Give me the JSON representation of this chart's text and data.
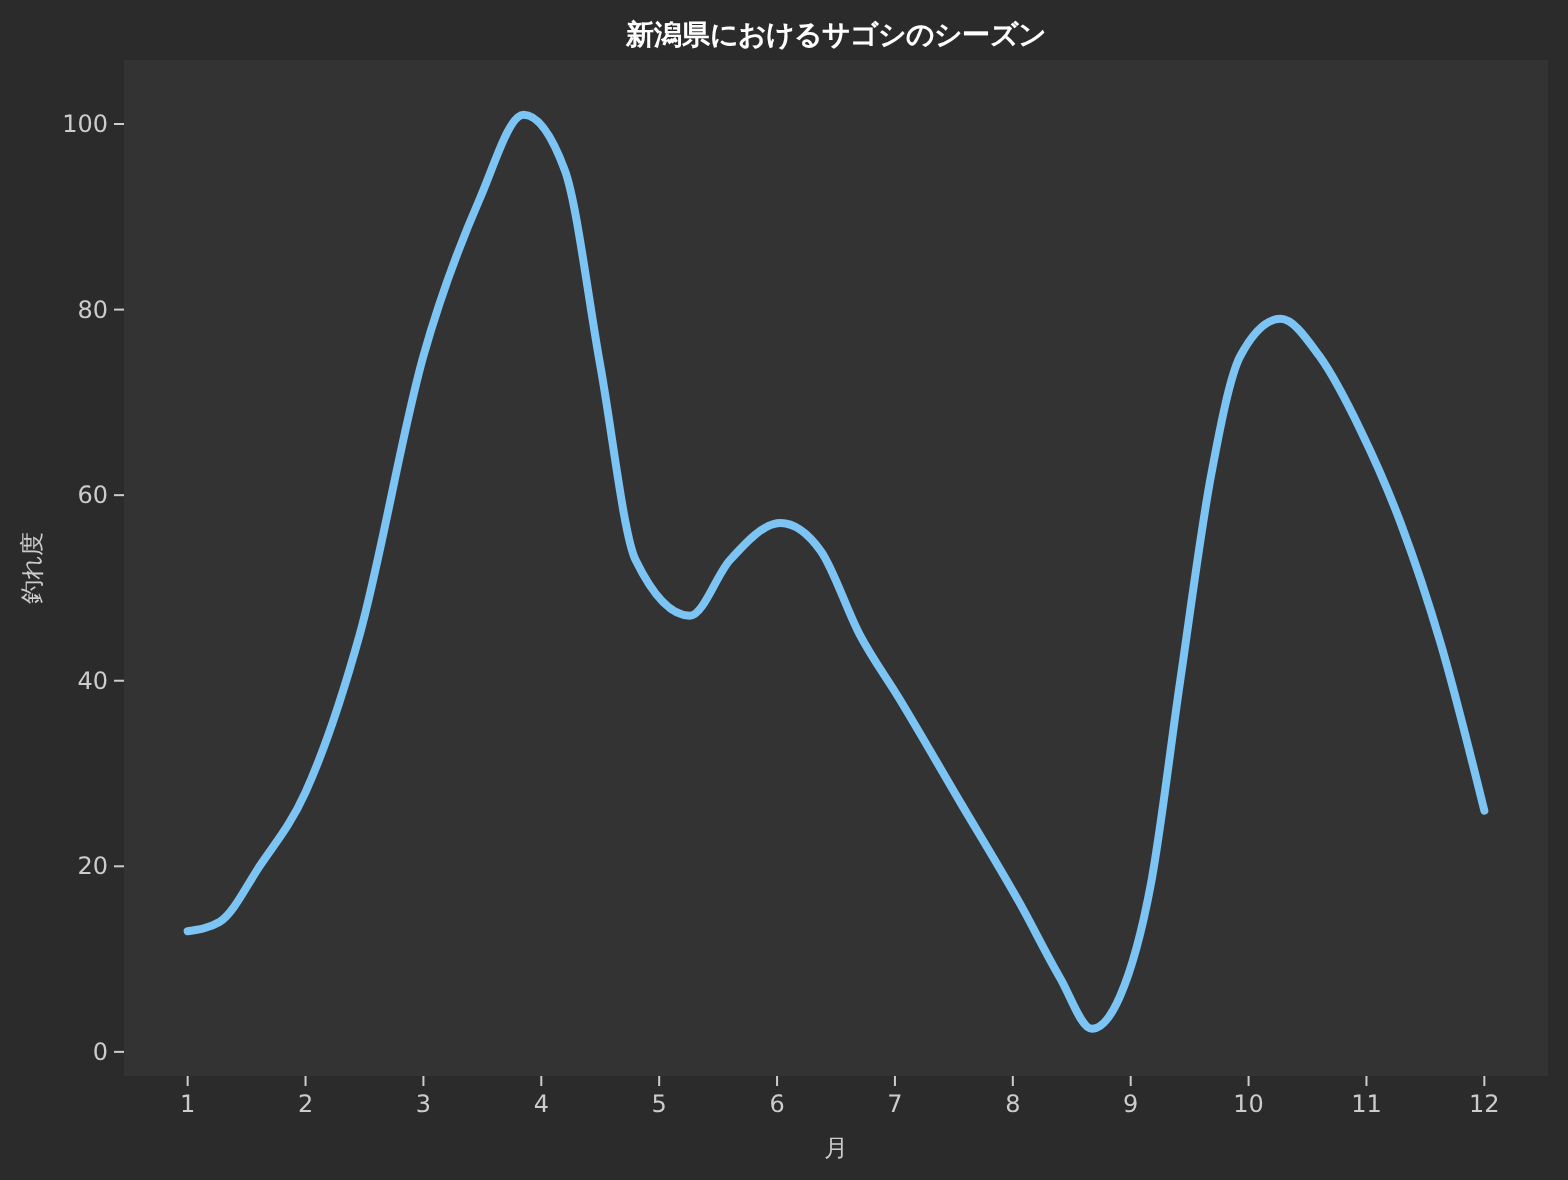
{
  "chart_data": {
    "type": "line",
    "title": "新潟県におけるサゴシのシーズン",
    "xlabel": "月",
    "ylabel": "釣れ度",
    "x": [
      1,
      1.27,
      1.61,
      2,
      2.46,
      3,
      3.48,
      3.85,
      4.2,
      4.5,
      4.8,
      5.26,
      5.6,
      6.03,
      6.37,
      6.7,
      7.04,
      7.55,
      8.06,
      8.4,
      8.67,
      8.91,
      9.17,
      9.42,
      9.68,
      9.93,
      10.27,
      10.6,
      10.95,
      11.29,
      11.63,
      12
    ],
    "series": [
      {
        "color": "#7cc4f4",
        "values": [
          13,
          14,
          20,
          28,
          45,
          75,
          92,
          101,
          95,
          74,
          53,
          47,
          53,
          57,
          54,
          45,
          38,
          27,
          16,
          8,
          2.5,
          6,
          18,
          40,
          62,
          75,
          79,
          75,
          67,
          57,
          44,
          26
        ]
      }
    ],
    "xlim": [
      0.46,
      12.54
    ],
    "ylim": [
      -2.6,
      106.9
    ],
    "xticks": [
      1,
      2,
      3,
      4,
      5,
      6,
      7,
      8,
      9,
      10,
      11,
      12
    ],
    "yticks": [
      0,
      20,
      40,
      60,
      80,
      100
    ],
    "grid": false,
    "marker": "none",
    "line_style": "solid"
  }
}
